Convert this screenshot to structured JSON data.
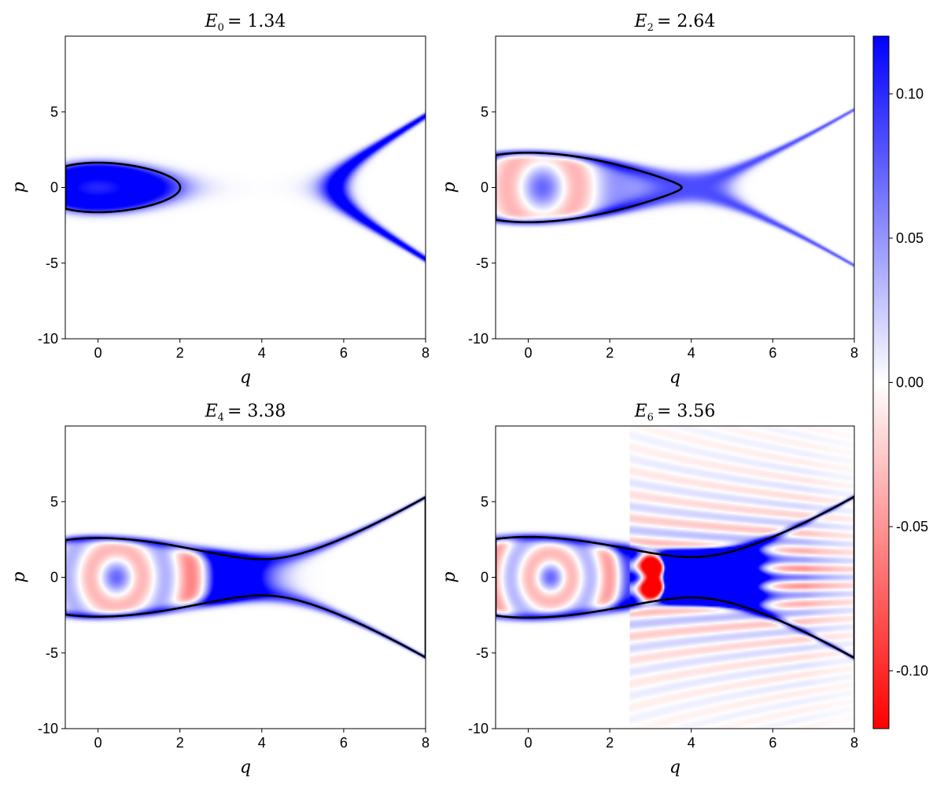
{
  "chart_data": {
    "type": "heatmap",
    "colormap": {
      "negative": "#ff0000",
      "zero": "#ffffff",
      "positive": "#0000ff"
    },
    "colorbar": {
      "range": [
        -0.12,
        0.12
      ],
      "ticks": [
        0.1,
        0.05,
        0.0,
        -0.05,
        -0.1
      ],
      "tick_labels": [
        "0.10",
        "0.05",
        "0.00",
        "-0.05",
        "-0.10"
      ]
    },
    "panels": [
      {
        "title_symbol": "E",
        "title_subscript": "0",
        "title_value": "= 1.34",
        "energy": 1.34,
        "mode": 0,
        "xlabel": "q",
        "ylabel": "p",
        "xlim": [
          -0.8,
          8
        ],
        "ylim": [
          -10,
          10
        ],
        "xticks": [
          0,
          2,
          4,
          6,
          8
        ],
        "xtick_labels": [
          "0",
          "2",
          "4",
          "6",
          "8"
        ],
        "yticks": [
          -10,
          -5,
          0,
          5
        ],
        "ytick_labels": [
          "-10",
          "-5",
          "0",
          "5"
        ]
      },
      {
        "title_symbol": "E",
        "title_subscript": "2",
        "title_value": "= 2.64",
        "energy": 2.64,
        "mode": 2,
        "xlabel": "q",
        "ylabel": "p",
        "xlim": [
          -0.8,
          8
        ],
        "ylim": [
          -10,
          10
        ],
        "xticks": [
          0,
          2,
          4,
          6,
          8
        ],
        "xtick_labels": [
          "0",
          "2",
          "4",
          "6",
          "8"
        ],
        "yticks": [
          -10,
          -5,
          0,
          5
        ],
        "ytick_labels": [
          "-10",
          "-5",
          "0",
          "5"
        ]
      },
      {
        "title_symbol": "E",
        "title_subscript": "4",
        "title_value": "= 3.38",
        "energy": 3.38,
        "mode": 4,
        "xlabel": "q",
        "ylabel": "p",
        "xlim": [
          -0.8,
          8
        ],
        "ylim": [
          -10,
          10
        ],
        "xticks": [
          0,
          2,
          4,
          6,
          8
        ],
        "xtick_labels": [
          "0",
          "2",
          "4",
          "6",
          "8"
        ],
        "yticks": [
          -10,
          -5,
          0,
          5
        ],
        "ytick_labels": [
          "-10",
          "-5",
          "0",
          "5"
        ]
      },
      {
        "title_symbol": "E",
        "title_subscript": "6",
        "title_value": "= 3.56",
        "energy": 3.56,
        "mode": 6,
        "xlabel": "q",
        "ylabel": "p",
        "xlim": [
          -0.8,
          8
        ],
        "ylim": [
          -10,
          10
        ],
        "xticks": [
          0,
          2,
          4,
          6,
          8
        ],
        "xtick_labels": [
          "0",
          "2",
          "4",
          "6",
          "8"
        ],
        "yticks": [
          -10,
          -5,
          0,
          5
        ],
        "ytick_labels": [
          "-10",
          "-5",
          "0",
          "5"
        ]
      }
    ]
  }
}
